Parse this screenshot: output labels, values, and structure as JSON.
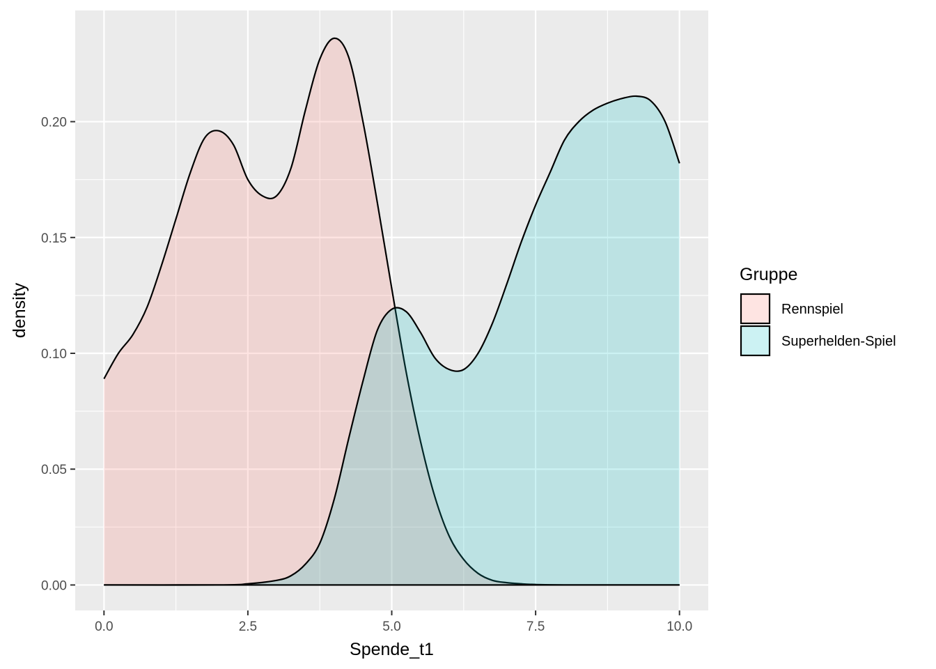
{
  "chart_data": {
    "type": "area",
    "xlabel": "Spende_t1",
    "ylabel": "density",
    "xlim": [
      -0.5,
      10.5
    ],
    "ylim": [
      -0.011,
      0.248
    ],
    "x_ticks": [
      0.0,
      2.5,
      5.0,
      7.5,
      10.0
    ],
    "x_tick_labels": [
      "0.0",
      "2.5",
      "5.0",
      "7.5",
      "10.0"
    ],
    "y_ticks": [
      0.0,
      0.05,
      0.1,
      0.15,
      0.2
    ],
    "y_tick_labels": [
      "0.00",
      "0.05",
      "0.10",
      "0.15",
      "0.20"
    ],
    "grid": true,
    "legend": {
      "title": "Gruppe",
      "placement": "right"
    },
    "series": [
      {
        "name": "Rennspiel",
        "fill": "#F8766D",
        "x": [
          0.0,
          0.25,
          0.5,
          0.75,
          1.0,
          1.25,
          1.5,
          1.75,
          2.0,
          2.25,
          2.5,
          2.75,
          3.0,
          3.25,
          3.5,
          3.75,
          4.0,
          4.25,
          4.5,
          4.75,
          5.0,
          5.25,
          5.5,
          5.75,
          6.0,
          6.25,
          6.5,
          6.75,
          7.0,
          7.25,
          7.5,
          8.0,
          9.0,
          10.0
        ],
        "y": [
          0.089,
          0.1,
          0.108,
          0.12,
          0.138,
          0.158,
          0.178,
          0.193,
          0.196,
          0.19,
          0.175,
          0.168,
          0.168,
          0.18,
          0.205,
          0.227,
          0.236,
          0.228,
          0.2,
          0.165,
          0.128,
          0.092,
          0.062,
          0.038,
          0.021,
          0.011,
          0.005,
          0.002,
          0.001,
          0.0005,
          0.0002,
          0.0,
          0.0,
          0.0
        ]
      },
      {
        "name": "Superhelden-Spiel",
        "fill": "#00BFC4",
        "x": [
          0.0,
          2.0,
          2.5,
          3.0,
          3.25,
          3.5,
          3.75,
          4.0,
          4.25,
          4.5,
          4.75,
          5.0,
          5.25,
          5.5,
          5.75,
          6.0,
          6.25,
          6.5,
          6.75,
          7.0,
          7.25,
          7.5,
          7.75,
          8.0,
          8.25,
          8.5,
          8.75,
          9.0,
          9.25,
          9.5,
          9.75,
          10.0
        ],
        "y": [
          0.0,
          0.0,
          0.0005,
          0.002,
          0.004,
          0.009,
          0.018,
          0.037,
          0.063,
          0.088,
          0.11,
          0.119,
          0.118,
          0.109,
          0.098,
          0.093,
          0.093,
          0.1,
          0.113,
          0.13,
          0.148,
          0.164,
          0.178,
          0.192,
          0.2,
          0.205,
          0.208,
          0.21,
          0.211,
          0.209,
          0.2,
          0.182
        ]
      }
    ]
  }
}
